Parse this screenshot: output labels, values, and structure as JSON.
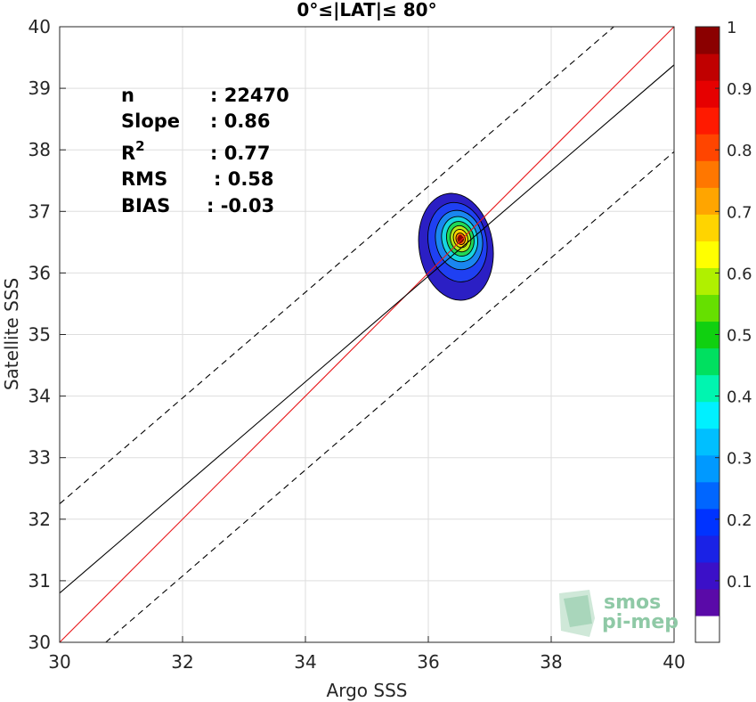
{
  "chart_data": {
    "type": "contour-scatter",
    "title": "0°≤|LAT|≤ 80°",
    "xlabel": "Argo SSS",
    "ylabel": "Satellite SSS",
    "xlim": [
      30,
      40
    ],
    "ylim": [
      30,
      40
    ],
    "xticks": [
      "30",
      "32",
      "34",
      "36",
      "38",
      "40"
    ],
    "yticks": [
      "30",
      "31",
      "32",
      "33",
      "34",
      "35",
      "36",
      "37",
      "38",
      "39",
      "40"
    ],
    "grid": true,
    "stats": [
      {
        "label": "n",
        "value": ": 22470"
      },
      {
        "label": "Slope",
        "value": ": 0.86"
      },
      {
        "label": "R",
        "sup": "2",
        "value": ": 0.77"
      },
      {
        "label": "RMS",
        "value": ": 0.58"
      },
      {
        "label": "BIAS",
        "value": ": -0.03"
      }
    ],
    "lines": [
      {
        "style": "identity",
        "color": "#e8191c",
        "points": [
          [
            30,
            30
          ],
          [
            40,
            40
          ]
        ]
      },
      {
        "style": "regression",
        "color": "#000000",
        "points": [
          [
            30,
            30.8
          ],
          [
            40,
            39.38
          ]
        ]
      },
      {
        "style": "dashed-upper",
        "color": "#000000",
        "points": [
          [
            30,
            32.25
          ],
          [
            39.02,
            40
          ]
        ]
      },
      {
        "style": "dashed-lower",
        "color": "#000000",
        "points": [
          [
            30.75,
            30
          ],
          [
            40,
            37.97
          ]
        ]
      }
    ],
    "density_peak": {
      "x": 36.52,
      "y": 36.55
    },
    "contour_levels": [
      0.05,
      0.1,
      0.2,
      0.3,
      0.4,
      0.5,
      0.6,
      0.7,
      0.8,
      0.9,
      1.0
    ],
    "contours": [
      {
        "level": 0.05,
        "color": "#2b1fc4",
        "x": [
          35.85,
          37.05
        ],
        "y": [
          35.55,
          37.3
        ],
        "tilt": 0.28
      },
      {
        "level": 0.2,
        "color": "#1f40f2",
        "x": [
          36.0,
          36.95
        ],
        "y": [
          35.85,
          37.15
        ],
        "tilt": 0.32
      },
      {
        "level": 0.3,
        "color": "#1a86f0",
        "x": [
          36.12,
          36.88
        ],
        "y": [
          36.05,
          37.02
        ],
        "tilt": 0.35
      },
      {
        "level": 0.4,
        "color": "#17d6e0",
        "x": [
          36.22,
          36.8
        ],
        "y": [
          36.18,
          36.92
        ],
        "tilt": 0.38
      },
      {
        "level": 0.5,
        "color": "#20d957",
        "x": [
          36.3,
          36.74
        ],
        "y": [
          36.27,
          36.84
        ],
        "tilt": 0.4
      },
      {
        "level": 0.6,
        "color": "#b3e81a",
        "x": [
          36.36,
          36.69
        ],
        "y": [
          36.34,
          36.77
        ],
        "tilt": 0.42
      },
      {
        "level": 0.7,
        "color": "#ffd400",
        "x": [
          36.41,
          36.64
        ],
        "y": [
          36.41,
          36.71
        ],
        "tilt": 0.44
      },
      {
        "level": 0.8,
        "color": "#ff7a00",
        "x": [
          36.45,
          36.6
        ],
        "y": [
          36.46,
          36.65
        ],
        "tilt": 0.45
      },
      {
        "level": 0.9,
        "color": "#e60000",
        "x": [
          36.48,
          36.57
        ],
        "y": [
          36.5,
          36.6
        ],
        "tilt": 0.45
      }
    ],
    "colorbar": {
      "range": [
        0,
        1
      ],
      "ticks": [
        "0.1",
        "0.2",
        "0.3",
        "0.4",
        "0.5",
        "0.6",
        "0.7",
        "0.8",
        "0.9",
        "1"
      ],
      "tick_values": [
        0.1,
        0.2,
        0.3,
        0.4,
        0.5,
        0.6,
        0.7,
        0.8,
        0.9,
        1.0
      ],
      "colors": [
        "#ffffff",
        "#5a0aa8",
        "#3b10c8",
        "#1a22e6",
        "#0033ff",
        "#0066ff",
        "#0099ff",
        "#00bfff",
        "#00f0ff",
        "#00f5b0",
        "#00e060",
        "#10d010",
        "#66e000",
        "#b0f000",
        "#ffff00",
        "#ffd400",
        "#ffa500",
        "#ff7700",
        "#ff4500",
        "#ff1a00",
        "#e60000",
        "#c00000",
        "#8b0000"
      ]
    }
  },
  "logo": {
    "line1": "smos",
    "line2": "pi-mep"
  }
}
